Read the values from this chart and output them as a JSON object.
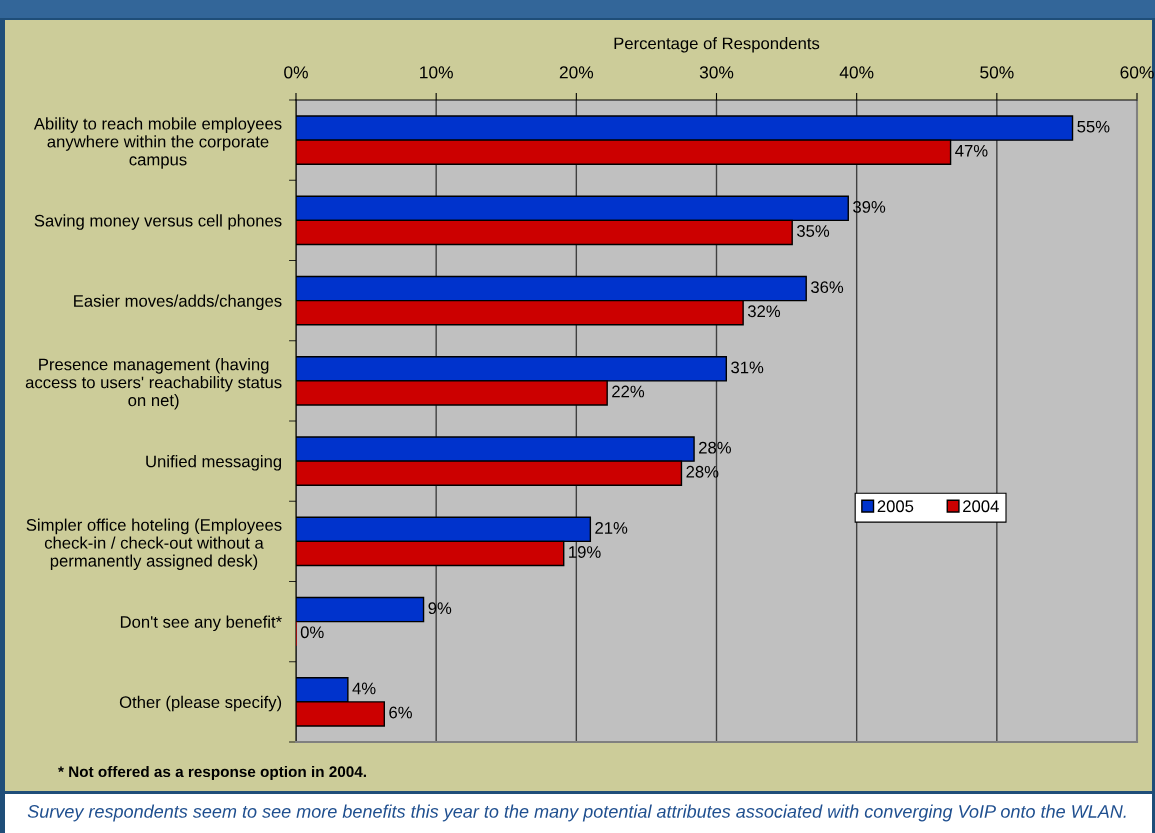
{
  "chart_data": {
    "type": "bar",
    "orientation": "horizontal",
    "xlabel": "Percentage of Respondents",
    "categories": [
      "Ability to reach mobile employees\nanywhere within the corporate\ncampus",
      "Saving money versus cell phones",
      "Easier moves/adds/changes",
      "Presence management (having\naccess to users' reachability status\non net)",
      "Unified messaging",
      "Simpler office hoteling (Employees\ncheck-in / check-out without a\npermanently assigned desk)",
      "Don't see any benefit*",
      "Other (please specify)"
    ],
    "series": [
      {
        "name": "2005",
        "color": "#0033cc",
        "values": [
          55.4,
          39.4,
          36.4,
          30.7,
          28.4,
          21.0,
          9.1,
          3.7
        ],
        "value_labels": [
          "55%",
          "39%",
          "36%",
          "31%",
          "28%",
          "21%",
          "9%",
          "4%"
        ]
      },
      {
        "name": "2004",
        "color": "#cc0000",
        "values": [
          46.7,
          35.4,
          31.9,
          22.2,
          27.5,
          19.1,
          0,
          6.3
        ],
        "value_labels": [
          "47%",
          "35%",
          "32%",
          "22%",
          "28%",
          "19%",
          "0%",
          "6%"
        ]
      }
    ],
    "xlim": [
      0,
      60
    ],
    "xticks": [
      {
        "value": 0,
        "label": "0%"
      },
      {
        "value": 10,
        "label": "10%"
      },
      {
        "value": 20,
        "label": "20%"
      },
      {
        "value": 30,
        "label": "30%"
      },
      {
        "value": 40,
        "label": "40%"
      },
      {
        "value": 50,
        "label": "50%"
      },
      {
        "value": 60,
        "label": "60%"
      }
    ],
    "grid": "x",
    "legend": "right",
    "annotations": [
      "* Not offered as a response option in 2004.",
      "Survey respondents seem to see more benefits this year to the many potential attributes associated with converging VoIP onto the WLAN."
    ]
  }
}
